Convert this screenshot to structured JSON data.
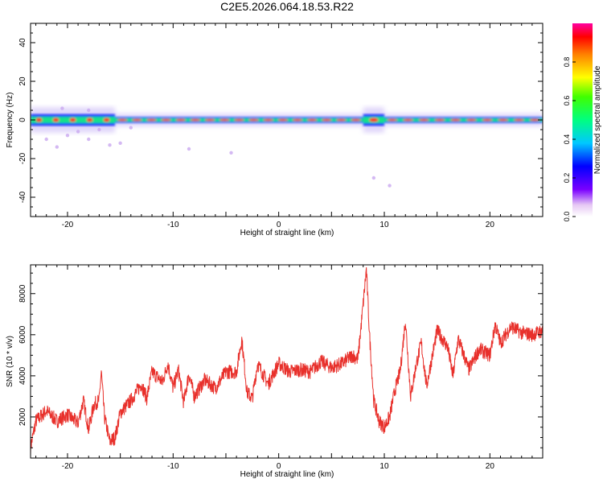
{
  "title": "C2E5.2026.064.18.53.R22",
  "colors": {
    "trace": "#e8302b",
    "axis": "#000000",
    "background": "#ffffff"
  },
  "chart_data": [
    {
      "type": "heatmap",
      "xlabel": "Height of straight line (km)",
      "ylabel": "Frequency (Hz)",
      "xlim": [
        -23.5,
        25
      ],
      "ylim": [
        -50,
        50
      ],
      "xticks": [
        -20,
        -10,
        0,
        10,
        20
      ],
      "xtick_labels": [
        "-20",
        "-10",
        "0",
        "10",
        "20"
      ],
      "yticks": [
        -40,
        -20,
        0,
        20,
        40
      ],
      "ytick_labels": [
        "-40",
        "-20",
        "0",
        "20",
        "40"
      ],
      "colorbar": {
        "label": "Normalized spectral amplitude",
        "range": [
          0,
          1
        ],
        "ticks": [
          0,
          0.2,
          0.4,
          0.6,
          0.8
        ],
        "tick_labels": [
          "0.0",
          "0.2",
          "0.4",
          "0.6",
          "0.8"
        ]
      },
      "band": {
        "center_freq_hz": 0,
        "segments": [
          {
            "x0": -23.5,
            "x1": -15.5,
            "half_width_hz": 3,
            "amplitude": 0.55
          },
          {
            "x0": -15.5,
            "x1": 8,
            "half_width_hz": 1.5,
            "amplitude": 0.9
          },
          {
            "x0": 8,
            "x1": 10,
            "half_width_hz": 3,
            "amplitude": 0.8
          },
          {
            "x0": 10,
            "x1": 25,
            "half_width_hz": 1.5,
            "amplitude": 0.9
          }
        ]
      },
      "scatter_noise": [
        {
          "x": -22,
          "y": -10
        },
        {
          "x": -21,
          "y": -14
        },
        {
          "x": -20,
          "y": -8
        },
        {
          "x": -19,
          "y": -6
        },
        {
          "x": -18,
          "y": -10
        },
        {
          "x": -17,
          "y": -5
        },
        {
          "x": -16,
          "y": -13
        },
        {
          "x": -15,
          "y": -12
        },
        {
          "x": -14,
          "y": -4
        },
        {
          "x": -8.5,
          "y": -15
        },
        {
          "x": -4.5,
          "y": -17
        },
        {
          "x": 9,
          "y": -30
        },
        {
          "x": 10.5,
          "y": -34
        },
        {
          "x": -18,
          "y": 5
        },
        {
          "x": -20.5,
          "y": 6
        }
      ]
    },
    {
      "type": "line",
      "xlabel": "Height of straight line (km)",
      "ylabel": "SNR (10 * v/v)",
      "xlim": [
        -23.5,
        25
      ],
      "ylim": [
        0,
        9400
      ],
      "xticks": [
        -20,
        -10,
        0,
        10,
        20
      ],
      "xtick_labels": [
        "-20",
        "-10",
        "0",
        "10",
        "20"
      ],
      "yticks": [
        2000,
        4000,
        6000,
        8000
      ],
      "ytick_labels": [
        "2000",
        "4000",
        "6000",
        "8000"
      ],
      "series": [
        {
          "name": "SNR",
          "x": [
            -23.5,
            -23,
            -22,
            -21,
            -20,
            -19,
            -18.5,
            -18,
            -17.5,
            -17,
            -16.8,
            -16.5,
            -16,
            -15.5,
            -15,
            -14,
            -13,
            -12.5,
            -12,
            -11,
            -10.5,
            -10,
            -9.5,
            -9,
            -8.5,
            -8,
            -7,
            -6,
            -5,
            -4,
            -3.5,
            -3,
            -2.5,
            -2,
            -1,
            0,
            1,
            2,
            3,
            4,
            5,
            6,
            7,
            7.5,
            8,
            8.3,
            8.6,
            9,
            9.5,
            10,
            10.5,
            11,
            11.5,
            12,
            12.5,
            13,
            13.5,
            14,
            15,
            16,
            16.5,
            17,
            18,
            19,
            20,
            20.5,
            21,
            22,
            23,
            24,
            25
          ],
          "y": [
            500,
            1800,
            2300,
            1800,
            2100,
            1700,
            2800,
            1400,
            2600,
            2800,
            4200,
            2000,
            800,
            1000,
            2200,
            2800,
            3600,
            2900,
            4200,
            3700,
            4600,
            3400,
            4300,
            2700,
            4100,
            3000,
            3800,
            3400,
            4200,
            4200,
            5800,
            3200,
            2900,
            4600,
            3600,
            4600,
            4200,
            4300,
            4200,
            4700,
            4400,
            4600,
            5000,
            4800,
            7500,
            9200,
            6000,
            2800,
            1800,
            1500,
            2000,
            3300,
            4200,
            6700,
            3000,
            4500,
            5600,
            3500,
            6200,
            5400,
            4000,
            5800,
            4300,
            5300,
            5000,
            6500,
            5600,
            6400,
            6100,
            6000,
            6200
          ]
        }
      ]
    }
  ]
}
